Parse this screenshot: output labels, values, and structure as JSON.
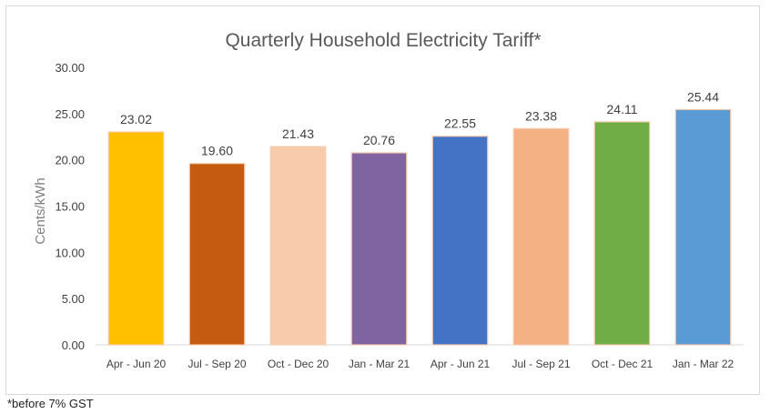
{
  "footnote": "*before 7% GST",
  "chart_data": {
    "type": "bar",
    "title": "Quarterly Household Electricity Tariff*",
    "xlabel": "",
    "ylabel": "Cents/kWh",
    "ylim": [
      0,
      30
    ],
    "yticks": [
      "0.00",
      "5.00",
      "10.00",
      "15.00",
      "20.00",
      "25.00",
      "30.00"
    ],
    "grid": false,
    "categories": [
      "Apr - Jun 20",
      "Jul - Sep 20",
      "Oct - Dec 20",
      "Jan - Mar 21",
      "Apr - Jun 21",
      "Jul - Sep 21",
      "Oct - Dec 21",
      "Jan - Mar 22"
    ],
    "values": [
      23.02,
      19.6,
      21.43,
      20.76,
      22.55,
      23.38,
      24.11,
      25.44
    ],
    "value_labels": [
      "23.02",
      "19.60",
      "21.43",
      "20.76",
      "22.55",
      "23.38",
      "24.11",
      "25.44"
    ],
    "colors": [
      "#FFC000",
      "#C55A11",
      "#F8CBAD",
      "#8064A2",
      "#4472C4",
      "#F4B183",
      "#70AD47",
      "#5B9BD5"
    ],
    "bar_outline": "#F8CBAD"
  }
}
